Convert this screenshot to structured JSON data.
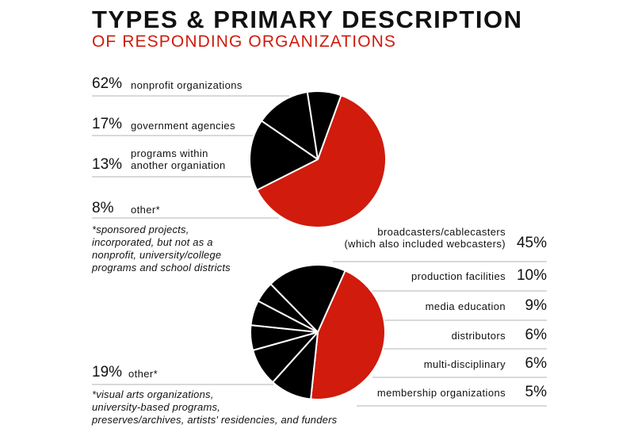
{
  "header": {
    "title": "TYPES & PRIMARY DESCRIPTION",
    "subtitle": "OF RESPONDING ORGANIZATIONS"
  },
  "colors": {
    "accent": "#d01b0d",
    "dark": "#000000",
    "rule": "#b3b3b3"
  },
  "chart_data": [
    {
      "type": "pie",
      "title": "",
      "slices": [
        {
          "pct": "62%",
          "value": 62,
          "label": "nonprofit organizations",
          "color": "#d01b0d"
        },
        {
          "pct": "17%",
          "value": 17,
          "label": "government agencies",
          "color": "#000000"
        },
        {
          "pct": "13%",
          "value": 13,
          "label": "programs within\nanother organiation",
          "color": "#000000"
        },
        {
          "pct": "8%",
          "value": 8,
          "label": "other*",
          "color": "#000000"
        }
      ],
      "footnote": "*sponsored projects,\nincorporated, but not as a\nnonprofit, university/college\nprograms and school districts"
    },
    {
      "type": "pie",
      "title": "",
      "slices": [
        {
          "pct": "45%",
          "value": 45,
          "label": "broadcasters/cablecasters\n(which also included webcasters)",
          "color": "#d01b0d"
        },
        {
          "pct": "10%",
          "value": 10,
          "label": "production facilities",
          "color": "#000000"
        },
        {
          "pct": "9%",
          "value": 9,
          "label": "media education",
          "color": "#000000"
        },
        {
          "pct": "6%",
          "value": 6,
          "label": "distributors",
          "color": "#000000"
        },
        {
          "pct": "6%",
          "value": 6,
          "label": "multi-disciplinary",
          "color": "#000000"
        },
        {
          "pct": "5%",
          "value": 5,
          "label": "membership organizations",
          "color": "#000000"
        },
        {
          "pct": "19%",
          "value": 19,
          "label": "other*",
          "color": "#000000"
        }
      ],
      "footnote": "*visual arts organizations,\nuniversity-based programs,\npreserves/archives, artists' residencies, and funders"
    }
  ]
}
